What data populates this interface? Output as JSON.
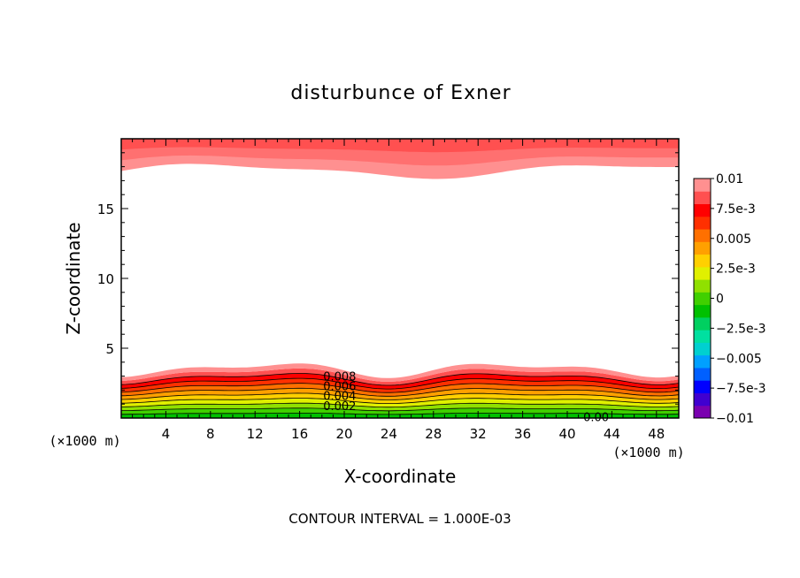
{
  "chart_data": {
    "type": "contour",
    "title": "disturbunce of Exner",
    "xlabel": "X-coordinate",
    "ylabel": "Z-coordinate",
    "x_unit_left": "(×1000 m)",
    "x_unit_right": "(×1000 m)",
    "xlim": [
      0,
      50
    ],
    "ylim": [
      0,
      20
    ],
    "x_ticks": [
      4,
      8,
      12,
      16,
      20,
      24,
      28,
      32,
      36,
      40,
      44,
      48
    ],
    "y_ticks": [
      5,
      10,
      15
    ],
    "contour_interval_text": "CONTOUR INTERVAL = 1.000E-03",
    "contour_labels": [
      {
        "text": "0.008",
        "x": 18,
        "z": 3.0
      },
      {
        "text": "0.006",
        "x": 18,
        "z": 2.3
      },
      {
        "text": "0.004",
        "x": 18,
        "z": 1.6
      },
      {
        "text": "0.002",
        "x": 18,
        "z": 0.9
      },
      {
        "text": "0.00",
        "x": 41,
        "z": 0.1
      }
    ],
    "colorbar": {
      "ticks": [
        "0.01",
        "7.5e-3",
        "0.005",
        "2.5e-3",
        "0",
        "−2.5e-3",
        "−0.005",
        "−7.5e-3",
        "−0.01"
      ],
      "levels": [
        -0.01,
        0.01
      ],
      "colors": [
        "#7a00b0",
        "#4000d0",
        "#0000ff",
        "#0060ff",
        "#00a0ff",
        "#00d0d0",
        "#00e0a0",
        "#00d060",
        "#00c000",
        "#40d000",
        "#90e000",
        "#e0f000",
        "#ffd000",
        "#ffa000",
        "#ff7000",
        "#ff3000",
        "#ff0000",
        "#ff5050",
        "#ff9090"
      ]
    },
    "top_band": {
      "inner_z_mean": 17.7,
      "wave_amplitude": 0.3
    },
    "bottom_band": {
      "top_z_mean": 3.5,
      "wave_amplitude": 0.2
    }
  }
}
